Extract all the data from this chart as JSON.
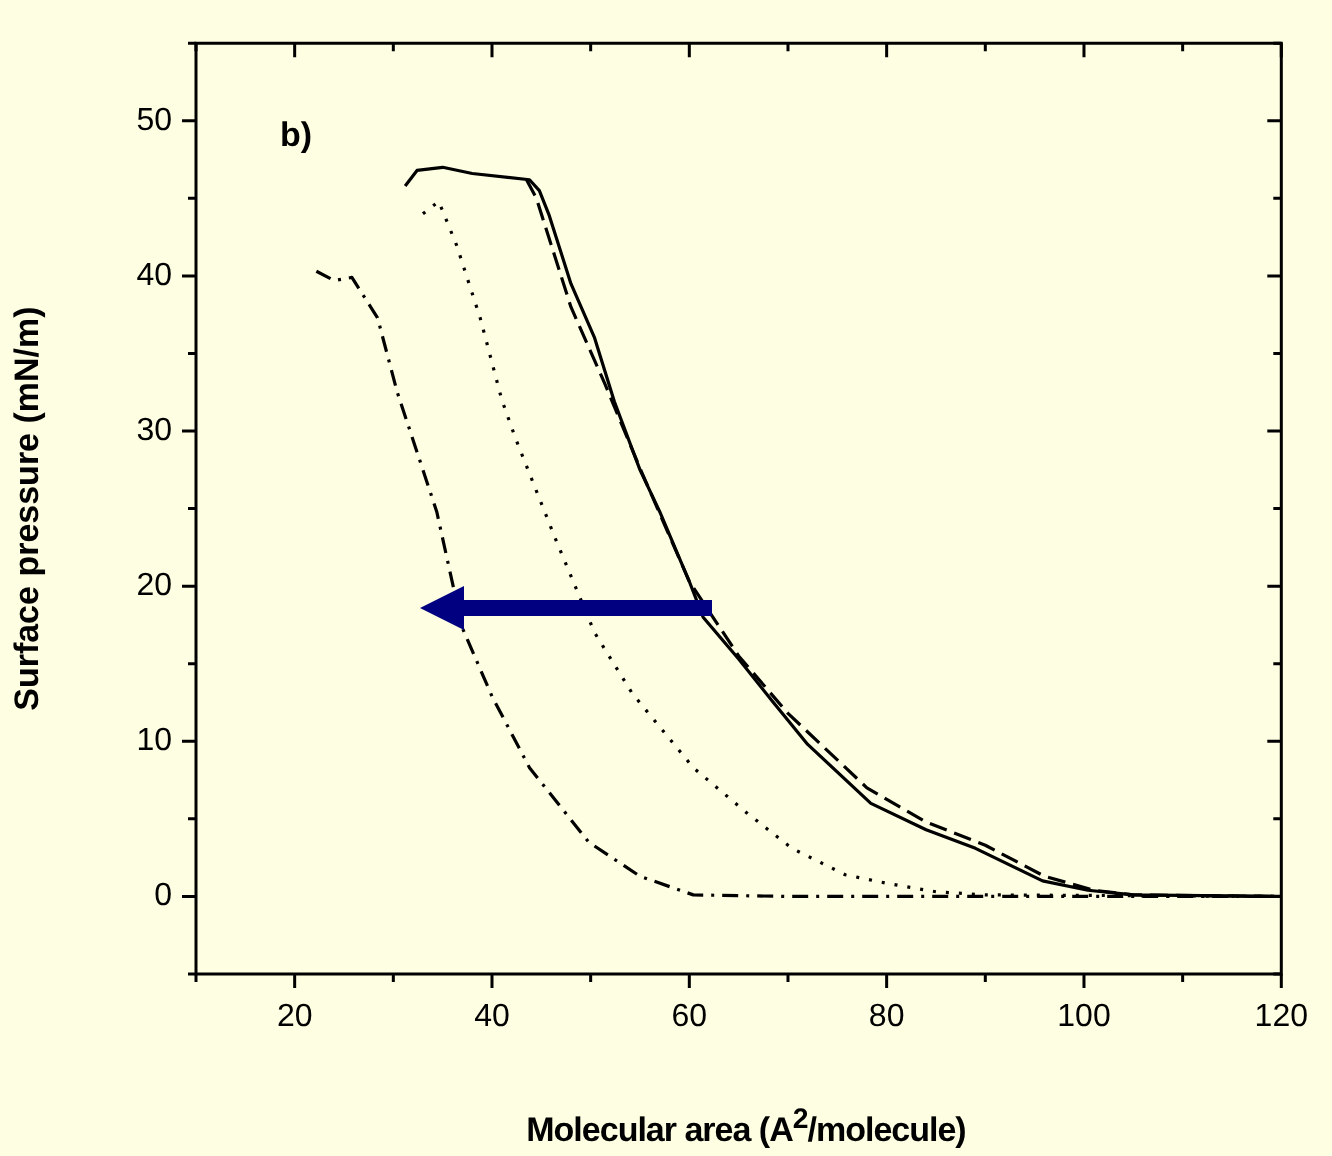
{
  "chart_data": {
    "type": "line",
    "xlabel": "Molecular area (A$^{2}$/molecule)",
    "ylabel": "Surface pressure (mN/m)",
    "annotations": [
      "b)"
    ],
    "xlim": [
      10,
      120
    ],
    "ylim": [
      -5,
      55
    ],
    "xticks": [
      {
        "value": 10,
        "label": null
      },
      20,
      {
        "value": 30,
        "label": null
      },
      40,
      {
        "value": 50,
        "label": null
      },
      60,
      {
        "value": 70,
        "label": null
      },
      80,
      {
        "value": 90,
        "label": null
      },
      100,
      {
        "value": 110,
        "label": null
      },
      120
    ],
    "yticks": [
      {
        "value": -5,
        "label": null
      },
      0,
      {
        "value": 5,
        "label": null
      },
      10,
      {
        "value": 15,
        "label": null
      },
      20,
      {
        "value": 25,
        "label": null
      },
      30,
      {
        "value": 35,
        "label": null
      },
      40,
      {
        "value": 45,
        "label": null
      },
      50,
      {
        "value": 55,
        "label": null
      }
    ],
    "grid": false,
    "legend": false,
    "marker": "none",
    "series": [
      {
        "color": "#000000",
        "line_style": "solid",
        "x": [
          31.2,
          32.4,
          35,
          38,
          43.8,
          44.8,
          45.8,
          48,
          50.4,
          52.4,
          55,
          57,
          60,
          61.4,
          65,
          68.4,
          72,
          78.4,
          84,
          89,
          95.8,
          100.4,
          105,
          120
        ],
        "values": [
          45.8,
          46.8,
          47,
          46.6,
          46.2,
          45.5,
          43.9,
          39.5,
          36,
          31.9,
          27.5,
          24.8,
          20.3,
          18,
          15.3,
          12.6,
          9.8,
          6,
          4.3,
          3.1,
          1,
          0.4,
          0.1,
          0
        ]
      },
      {
        "color": "#000000",
        "line_style": "dashed",
        "x": [
          43.5,
          44.5,
          46,
          48,
          51.4,
          55,
          60,
          65,
          70,
          78,
          84,
          90,
          96,
          101,
          105,
          120
        ],
        "values": [
          46.2,
          45,
          42,
          38,
          33.1,
          27.6,
          20.3,
          15.5,
          11.8,
          7,
          4.8,
          3.3,
          1.3,
          0.4,
          0.1,
          0
        ]
      },
      {
        "color": "#000000",
        "line_style": "dotted",
        "x": [
          33,
          34.6,
          36.4,
          38.8,
          41,
          42.4,
          46.4,
          50.4,
          54.2,
          60.4,
          65.8,
          70.4,
          75.8,
          80.4,
          85,
          90,
          120
        ],
        "values": [
          44,
          44.8,
          42,
          37.3,
          32,
          29.5,
          23.1,
          17,
          13.1,
          8.3,
          5.4,
          3.1,
          1.4,
          0.8,
          0.3,
          0.1,
          0
        ]
      },
      {
        "color": "#000000",
        "line_style": "dashdot",
        "x": [
          22.2,
          24,
          25.8,
          28.4,
          30.4,
          34.4,
          37,
          40,
          43.8,
          49.8,
          55,
          60.4,
          70,
          120
        ],
        "values": [
          40.3,
          39.7,
          39.9,
          37.3,
          32.5,
          24.8,
          17.3,
          12.9,
          8.3,
          3.5,
          1.3,
          0.1,
          0,
          0
        ]
      }
    ]
  }
}
